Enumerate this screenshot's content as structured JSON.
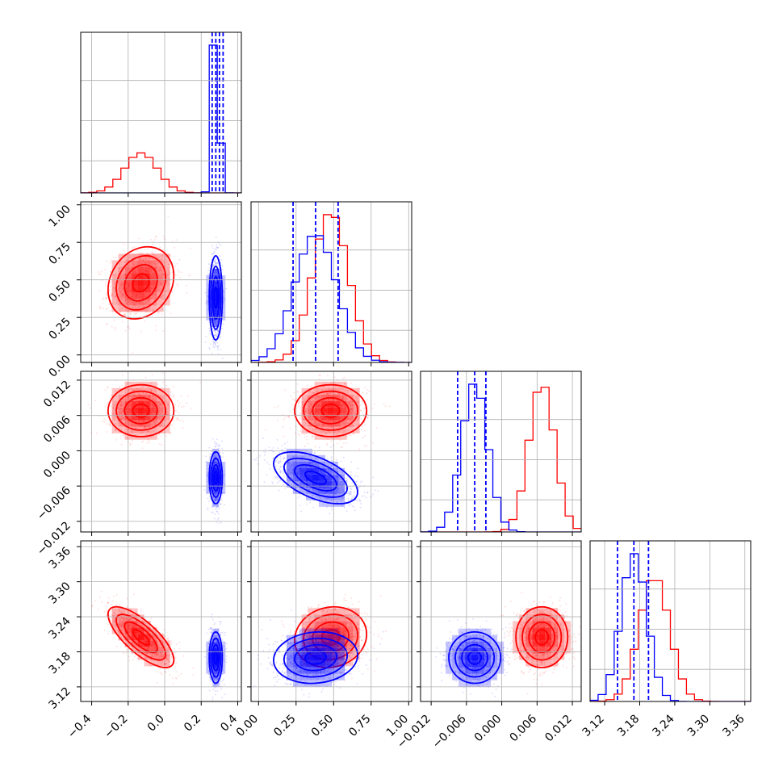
{
  "chart_data": {
    "type": "corner",
    "params": [
      {
        "ticks": [
          -0.4,
          -0.2,
          0.0,
          0.2,
          0.4
        ],
        "tick_labels": [
          "−0.4",
          "−0.2",
          "0.0",
          "0.2",
          "0.4"
        ],
        "range": [
          -0.46,
          0.42
        ]
      },
      {
        "ticks": [
          0.0,
          0.25,
          0.5,
          0.75,
          1.0
        ],
        "tick_labels": [
          "0.00",
          "0.25",
          "0.50",
          "0.75",
          "1.00"
        ],
        "range": [
          -0.05,
          1.02
        ]
      },
      {
        "ticks": [
          -0.012,
          -0.006,
          0.0,
          0.006,
          0.012
        ],
        "tick_labels": [
          "−0.012",
          "−0.006",
          "0.000",
          "0.006",
          "0.012"
        ],
        "range": [
          -0.0138,
          0.0135
        ]
      },
      {
        "ticks": [
          3.12,
          3.18,
          3.24,
          3.3,
          3.36
        ],
        "tick_labels": [
          "3.12",
          "3.18",
          "3.24",
          "3.30",
          "3.36"
        ],
        "range": [
          3.095,
          3.37
        ]
      }
    ],
    "series": [
      {
        "color": "#ff0000",
        "means": [
          -0.13,
          0.48,
          0.0068,
          3.205
        ],
        "sds": [
          0.09,
          0.12,
          0.0022,
          0.026
        ],
        "corr": {
          "0-1": 0.2,
          "0-2": 0.0,
          "0-3": -0.75,
          "1-2": 0.0,
          "1-3": 0.1,
          "2-3": 0.0
        },
        "quantile_lines": []
      },
      {
        "color": "#0000ff",
        "means": [
          0.28,
          0.38,
          -0.0046,
          3.17
        ],
        "sds": [
          0.018,
          0.14,
          0.0022,
          0.022
        ],
        "corr": {
          "0-1": 0.0,
          "0-2": 0.0,
          "0-3": 0.0,
          "1-2": -0.55,
          "1-3": 0.1,
          "2-3": 0.0
        },
        "quantile_lines": [
          [
            0.26,
            0.28,
            0.3,
            0.32
          ],
          [
            0.23,
            0.38,
            0.53
          ],
          [
            -0.0075,
            -0.0046,
            -0.0027
          ],
          [
            3.142,
            3.17,
            3.195
          ]
        ]
      }
    ],
    "grid": true
  }
}
